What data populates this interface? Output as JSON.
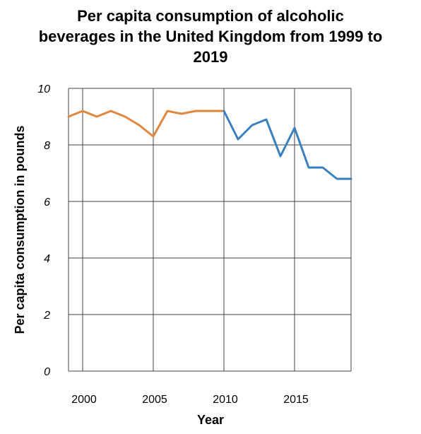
{
  "chart_data": {
    "type": "line",
    "title_lines": [
      "Per capita consumption of alcoholic",
      "beverages in the United Kingdom from 1999 to",
      "2019"
    ],
    "xlabel": "Year",
    "ylabel": "Per capita consumption in pounds",
    "xlim": [
      1999,
      2019
    ],
    "ylim": [
      0,
      10
    ],
    "x_ticks": [
      2000,
      2005,
      2010,
      2015
    ],
    "x_tick_labels": [
      "2000",
      "2005",
      "2010",
      "2015"
    ],
    "y_ticks": [
      0,
      2,
      4,
      6,
      8,
      10
    ],
    "y_tick_labels": [
      "0",
      "2",
      "4",
      "6",
      "8",
      "10"
    ],
    "grid": true,
    "series": [
      {
        "color": "#E0873F",
        "x": [
          1999,
          2000,
          2001,
          2002,
          2003,
          2004,
          2005,
          2006,
          2007,
          2008,
          2009,
          2010
        ],
        "values": [
          9.0,
          9.2,
          9.0,
          9.2,
          9.0,
          8.7,
          8.3,
          9.2,
          9.1,
          9.2,
          9.2,
          9.2
        ]
      },
      {
        "color": "#3A7FBF",
        "x": [
          2010,
          2011,
          2012,
          2013,
          2014,
          2015,
          2016,
          2017,
          2018,
          2019
        ],
        "values": [
          9.2,
          8.2,
          8.7,
          8.9,
          7.6,
          8.6,
          7.2,
          7.2,
          6.8,
          6.8
        ]
      }
    ]
  }
}
